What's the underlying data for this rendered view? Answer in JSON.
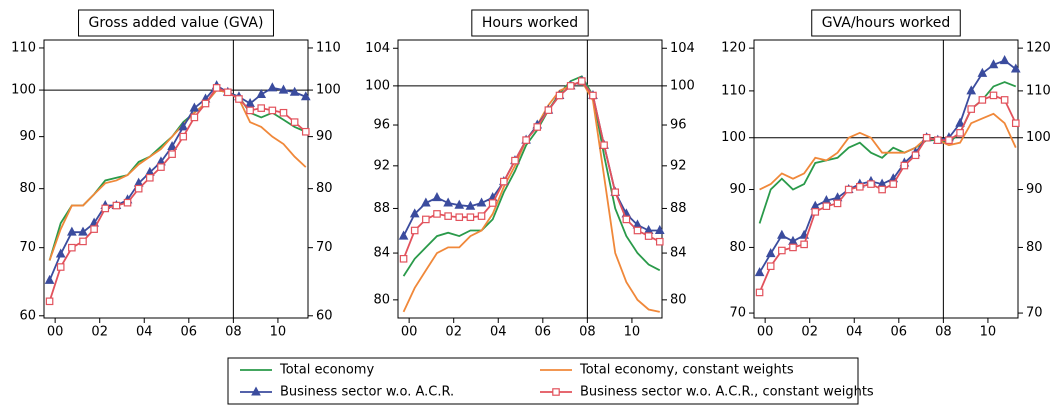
{
  "chart_data": [
    {
      "type": "line",
      "title": "Gross added value (GVA)",
      "log": true,
      "x": [
        1999.75,
        2000.25,
        2000.75,
        2001.25,
        2001.75,
        2002.25,
        2002.75,
        2003.25,
        2003.75,
        2004.25,
        2004.75,
        2005.25,
        2005.75,
        2006.25,
        2006.75,
        2007.25,
        2007.75,
        2008.25,
        2008.75,
        2009.25,
        2009.75,
        2010.25,
        2010.75,
        2011.25
      ],
      "xlim": [
        1999.5,
        2011.35
      ],
      "xticks": [
        {
          "value": 2000,
          "label": "00"
        },
        {
          "value": 2002,
          "label": "02"
        },
        {
          "value": 2004,
          "label": "04"
        },
        {
          "value": 2006,
          "label": "06"
        },
        {
          "value": 2008,
          "label": "08"
        },
        {
          "value": 2010,
          "label": "10"
        }
      ],
      "ylim": [
        59.7,
        112
      ],
      "yticks": [
        60,
        70,
        80,
        90,
        100,
        110
      ],
      "y2lim": [
        59.7,
        112
      ],
      "y2ticks": [
        60,
        70,
        80,
        90,
        100,
        110
      ],
      "vline": 2008,
      "hline": 100,
      "legend": "bottom",
      "series": [
        {
          "name": "Total economy",
          "color": "#2a9a4a",
          "marker": "none",
          "values": [
            68,
            74,
            77,
            77,
            79,
            81.5,
            82,
            82.5,
            85,
            86,
            88,
            90,
            93,
            95,
            97,
            100,
            99.5,
            98.5,
            95,
            94,
            95,
            93.5,
            92,
            91
          ]
        },
        {
          "name": "Total economy, constant weights",
          "color": "#f0883a",
          "marker": "none",
          "values": [
            68,
            73,
            77,
            77,
            79,
            81,
            81.5,
            82.5,
            84.5,
            86,
            87.5,
            90,
            92.5,
            95,
            97,
            100,
            99.5,
            98,
            93,
            92,
            90,
            88.5,
            86,
            84
          ]
        },
        {
          "name": "Business sector w.o. A.C.R.",
          "color": "#3b4c9e",
          "marker": "triangle",
          "values": [
            65,
            69,
            72.5,
            72.5,
            74,
            77,
            77,
            78,
            81,
            83,
            85,
            88,
            92,
            96,
            98,
            101,
            99.5,
            98.5,
            97,
            99,
            100.5,
            100,
            99.5,
            98.5
          ]
        },
        {
          "name": "Business sector w.o. A.C.R., constant weights",
          "color": "#e2525c",
          "marker": "square",
          "values": [
            62,
            67,
            70,
            71,
            73,
            76.5,
            77,
            77.5,
            80,
            82,
            84,
            86.5,
            90,
            94,
            97,
            100.5,
            99.5,
            98,
            95.5,
            96,
            95.5,
            95,
            93,
            91
          ]
        }
      ]
    },
    {
      "type": "line",
      "title": "Hours worked",
      "log": true,
      "x": [
        1999.75,
        2000.25,
        2000.75,
        2001.25,
        2001.75,
        2002.25,
        2002.75,
        2003.25,
        2003.75,
        2004.25,
        2004.75,
        2005.25,
        2005.75,
        2006.25,
        2006.75,
        2007.25,
        2007.75,
        2008.25,
        2008.75,
        2009.25,
        2009.75,
        2010.25,
        2010.75,
        2011.25
      ],
      "xlim": [
        1999.5,
        2011.35
      ],
      "xticks": [
        {
          "value": 2000,
          "label": "00"
        },
        {
          "value": 2002,
          "label": "02"
        },
        {
          "value": 2004,
          "label": "04"
        },
        {
          "value": 2006,
          "label": "06"
        },
        {
          "value": 2008,
          "label": "08"
        },
        {
          "value": 2010,
          "label": "10"
        }
      ],
      "ylim": [
        78.5,
        104.9
      ],
      "yticks": [
        80,
        84,
        88,
        92,
        96,
        100,
        104
      ],
      "y2lim": [
        78.5,
        104.9
      ],
      "y2ticks": [
        80,
        84,
        88,
        92,
        96,
        100,
        104
      ],
      "vline": 2008,
      "hline": 100,
      "series": [
        {
          "color": "#2a9a4a",
          "marker": "none",
          "values": [
            82,
            83.5,
            84.5,
            85.5,
            85.8,
            85.5,
            86,
            86,
            87,
            89.5,
            91.5,
            94,
            95.5,
            97.5,
            99.2,
            100.5,
            101,
            99,
            93,
            88,
            85.5,
            84,
            83,
            82.5
          ]
        },
        {
          "color": "#f0883a",
          "marker": "none",
          "values": [
            79,
            81,
            82.5,
            84,
            84.5,
            84.5,
            85.5,
            86,
            87.5,
            90,
            92,
            94.5,
            96,
            98,
            99.5,
            100,
            100.5,
            98.5,
            91,
            84,
            81.5,
            80,
            79.2,
            79
          ]
        },
        {
          "color": "#3b4c9e",
          "marker": "triangle",
          "values": [
            85.5,
            87.5,
            88.5,
            89,
            88.5,
            88.3,
            88.2,
            88.5,
            89,
            90.5,
            92.5,
            94.5,
            96,
            97.5,
            99,
            100,
            100.5,
            99,
            94,
            89.5,
            87.5,
            86.5,
            86,
            86
          ]
        },
        {
          "color": "#e2525c",
          "marker": "square",
          "values": [
            83.5,
            86,
            87,
            87.5,
            87.3,
            87.2,
            87.2,
            87.3,
            88.5,
            90.5,
            92.5,
            94.5,
            95.8,
            97.5,
            99,
            100,
            100.5,
            99,
            94,
            89.5,
            87,
            86,
            85.5,
            85
          ]
        }
      ]
    },
    {
      "type": "line",
      "title": "GVA/hours worked",
      "log": true,
      "x": [
        1999.75,
        2000.25,
        2000.75,
        2001.25,
        2001.75,
        2002.25,
        2002.75,
        2003.25,
        2003.75,
        2004.25,
        2004.75,
        2005.25,
        2005.75,
        2006.25,
        2006.75,
        2007.25,
        2007.75,
        2008.25,
        2008.75,
        2009.25,
        2009.75,
        2010.25,
        2010.75,
        2011.25
      ],
      "xlim": [
        1999.5,
        2011.35
      ],
      "xticks": [
        {
          "value": 2000,
          "label": "00"
        },
        {
          "value": 2002,
          "label": "02"
        },
        {
          "value": 2004,
          "label": "04"
        },
        {
          "value": 2006,
          "label": "06"
        },
        {
          "value": 2008,
          "label": "08"
        },
        {
          "value": 2010,
          "label": "10"
        }
      ],
      "ylim": [
        69.3,
        122
      ],
      "yticks": [
        70,
        80,
        90,
        100,
        110,
        120
      ],
      "y2lim": [
        69.3,
        122
      ],
      "y2ticks": [
        70,
        80,
        90,
        100,
        110,
        120
      ],
      "vline": 2008,
      "hline": 100,
      "series": [
        {
          "color": "#2a9a4a",
          "marker": "none",
          "values": [
            84,
            90,
            92,
            90,
            91,
            95,
            95.5,
            96,
            98,
            99,
            97,
            96,
            98,
            97,
            98,
            99.5,
            99.5,
            99,
            101,
            106,
            108,
            111,
            112,
            111
          ]
        },
        {
          "color": "#f0883a",
          "marker": "none",
          "values": [
            90,
            91,
            93,
            92,
            93,
            96,
            95.5,
            97,
            100,
            101,
            100,
            97,
            97,
            97,
            98,
            100,
            99.5,
            98.5,
            99,
            103,
            104,
            105,
            103,
            98
          ]
        },
        {
          "color": "#3b4c9e",
          "marker": "triangle",
          "values": [
            76,
            79,
            82,
            81,
            82,
            87,
            88,
            88.5,
            90,
            91,
            91.5,
            91,
            92,
            95,
            97,
            100,
            99.5,
            100,
            103,
            110,
            114,
            116,
            117,
            115
          ]
        },
        {
          "color": "#e2525c",
          "marker": "square",
          "values": [
            73,
            77,
            79.5,
            80,
            80.5,
            86,
            87,
            87.5,
            90,
            90.5,
            91,
            90,
            91,
            94.5,
            96.5,
            100,
            99.5,
            99.5,
            101,
            106,
            108,
            109,
            108,
            103
          ]
        }
      ]
    }
  ]
}
